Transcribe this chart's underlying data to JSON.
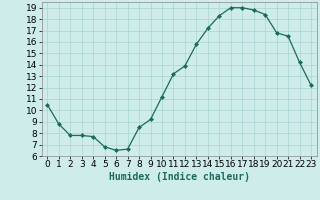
{
  "x": [
    0,
    1,
    2,
    3,
    4,
    5,
    6,
    7,
    8,
    9,
    10,
    11,
    12,
    13,
    14,
    15,
    16,
    17,
    18,
    19,
    20,
    21,
    22,
    23
  ],
  "y": [
    10.5,
    8.8,
    7.8,
    7.8,
    7.7,
    6.8,
    6.5,
    6.6,
    8.5,
    9.2,
    11.2,
    13.2,
    13.9,
    15.8,
    17.2,
    18.3,
    19.0,
    19.0,
    18.8,
    18.4,
    16.8,
    16.5,
    14.2,
    12.2
  ],
  "line_color": "#1a6b5a",
  "marker": "D",
  "marker_size": 2,
  "bg_color": "#ceecea",
  "grid_color": "#aed8d5",
  "xlabel": "Humidex (Indice chaleur)",
  "xlabel_fontsize": 7,
  "xlim": [
    -0.5,
    23.5
  ],
  "ylim": [
    6,
    19.5
  ],
  "yticks": [
    6,
    7,
    8,
    9,
    10,
    11,
    12,
    13,
    14,
    15,
    16,
    17,
    18,
    19
  ],
  "xticks": [
    0,
    1,
    2,
    3,
    4,
    5,
    6,
    7,
    8,
    9,
    10,
    11,
    12,
    13,
    14,
    15,
    16,
    17,
    18,
    19,
    20,
    21,
    22,
    23
  ],
  "tick_fontsize": 6.5
}
